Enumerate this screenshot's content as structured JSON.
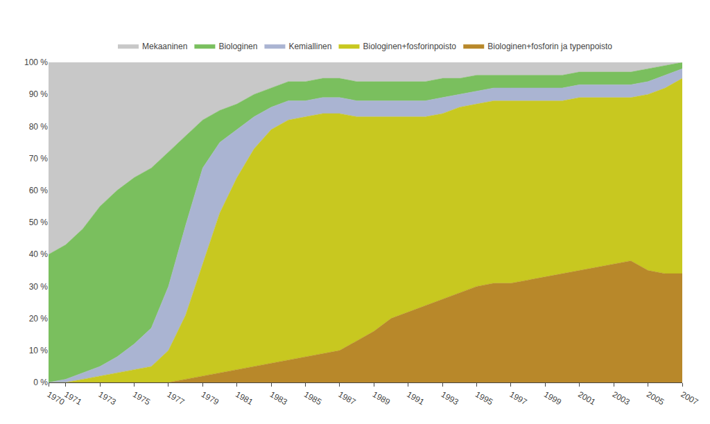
{
  "chart_data": {
    "type": "area",
    "stacked": true,
    "x": [
      1970,
      1971,
      1972,
      1973,
      1974,
      1975,
      1976,
      1977,
      1978,
      1979,
      1980,
      1981,
      1982,
      1983,
      1984,
      1985,
      1986,
      1987,
      1988,
      1989,
      1990,
      1991,
      1992,
      1993,
      1994,
      1995,
      1996,
      1997,
      1998,
      1999,
      2000,
      2001,
      2002,
      2003,
      2004,
      2005,
      2006,
      2007
    ],
    "series": [
      {
        "name": "Biologinen+fosforin ja typenpoisto",
        "color": "#b8882a",
        "values": [
          0,
          0,
          0,
          0,
          0,
          0,
          0,
          0,
          1,
          2,
          3,
          4,
          5,
          6,
          7,
          8,
          9,
          10,
          13,
          16,
          20,
          22,
          24,
          26,
          28,
          30,
          31,
          31,
          32,
          33,
          34,
          35,
          36,
          37,
          38,
          35,
          34,
          34
        ]
      },
      {
        "name": "Biologinen+fosforinpoisto",
        "color": "#c8c820",
        "values": [
          0,
          0,
          1,
          2,
          3,
          4,
          5,
          10,
          20,
          35,
          50,
          60,
          68,
          73,
          75,
          75,
          75,
          74,
          70,
          67,
          63,
          61,
          59,
          58,
          58,
          57,
          57,
          57,
          56,
          55,
          54,
          54,
          53,
          52,
          51,
          55,
          58,
          61
        ]
      },
      {
        "name": "Kemiallinen",
        "color": "#aab4d2",
        "values": [
          0,
          1,
          2,
          3,
          5,
          8,
          12,
          20,
          28,
          30,
          22,
          15,
          10,
          7,
          6,
          5,
          5,
          5,
          5,
          5,
          5,
          5,
          5,
          5,
          4,
          4,
          4,
          4,
          4,
          4,
          4,
          4,
          4,
          4,
          4,
          4,
          4,
          3
        ]
      },
      {
        "name": "Biologinen",
        "color": "#7abf5e",
        "values": [
          40,
          42,
          45,
          50,
          52,
          52,
          50,
          42,
          28,
          15,
          10,
          8,
          7,
          6,
          6,
          6,
          6,
          6,
          6,
          6,
          6,
          6,
          6,
          6,
          5,
          5,
          4,
          4,
          4,
          4,
          4,
          4,
          4,
          4,
          4,
          4,
          3,
          2
        ]
      },
      {
        "name": "Mekaaninen",
        "color": "#c8c8c8",
        "values": [
          60,
          57,
          52,
          45,
          40,
          36,
          33,
          28,
          23,
          18,
          15,
          13,
          10,
          8,
          6,
          6,
          5,
          5,
          6,
          6,
          6,
          6,
          6,
          5,
          5,
          4,
          4,
          4,
          4,
          4,
          4,
          3,
          3,
          3,
          3,
          2,
          1,
          0
        ]
      }
    ],
    "xlim": [
      1970,
      2007
    ],
    "xticks": [
      1970,
      1971,
      1973,
      1975,
      1977,
      1979,
      1981,
      1983,
      1985,
      1987,
      1989,
      1991,
      1993,
      1995,
      1997,
      1999,
      2001,
      2003,
      2005,
      2007
    ],
    "ylim": [
      0,
      100
    ],
    "yticks": [
      {
        "value": 0,
        "label": "0 %"
      },
      {
        "value": 10,
        "label": "10 %"
      },
      {
        "value": 20,
        "label": "20 %"
      },
      {
        "value": 30,
        "label": "30 %"
      },
      {
        "value": 40,
        "label": "40 %"
      },
      {
        "value": 50,
        "label": "50 %"
      },
      {
        "value": 60,
        "label": "60 %"
      },
      {
        "value": 70,
        "label": "70 %"
      },
      {
        "value": 80,
        "label": "80 %"
      },
      {
        "value": 90,
        "label": "90 %"
      },
      {
        "value": 100,
        "label": "100 %"
      }
    ],
    "grid": false,
    "legend": "top"
  }
}
